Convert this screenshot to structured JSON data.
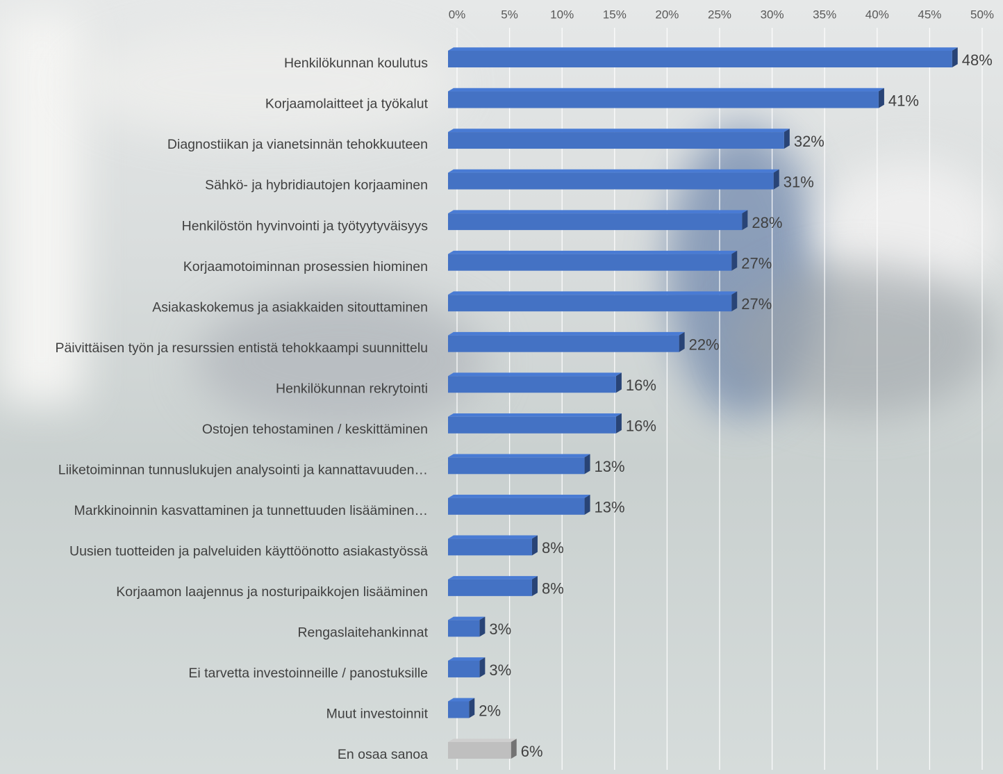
{
  "chart_data": {
    "type": "hbar",
    "categories": [
      "Henkilökunnan koulutus",
      "Korjaamolaitteet ja työkalut",
      "Diagnostiikan ja vianetsinnän tehokkuuteen",
      "Sähkö- ja hybridiautojen korjaaminen",
      "Henkilöstön hyvinvointi ja työtyytyväisyys",
      "Korjaamotoiminnan prosessien hiominen",
      "Asiakaskokemus ja asiakkaiden sitouttaminen",
      "Päivittäisen työn ja resurssien entistä tehokkaampi suunnittelu",
      "Henkilökunnan rekrytointi",
      "Ostojen tehostaminen / keskittäminen",
      "Liiketoiminnan tunnuslukujen analysointi ja kannattavuuden…",
      "Markkinoinnin kasvattaminen ja tunnettuuden lisääminen…",
      "Uusien tuotteiden ja palveluiden käyttöönotto asiakastyössä",
      "Korjaamon laajennus ja nosturipaikkojen lisääminen",
      "Rengaslaitehankinnat",
      "Ei tarvetta investoinneille / panostuksille",
      "Muut investoinnit",
      "En osaa sanoa"
    ],
    "values": [
      48,
      41,
      32,
      31,
      28,
      27,
      27,
      22,
      16,
      16,
      13,
      13,
      8,
      8,
      3,
      3,
      2,
      6
    ],
    "value_labels": [
      "48%",
      "41%",
      "32%",
      "31%",
      "28%",
      "27%",
      "27%",
      "22%",
      "16%",
      "16%",
      "13%",
      "13%",
      "8%",
      "8%",
      "3%",
      "3%",
      "2%",
      "6%"
    ],
    "colors": [
      "#4472c4",
      "#4472c4",
      "#4472c4",
      "#4472c4",
      "#4472c4",
      "#4472c4",
      "#4472c4",
      "#4472c4",
      "#4472c4",
      "#4472c4",
      "#4472c4",
      "#4472c4",
      "#4472c4",
      "#4472c4",
      "#4472c4",
      "#4472c4",
      "#4472c4",
      "#bfbfbf"
    ],
    "xlim": [
      0,
      50
    ],
    "xticks": [
      {
        "value": 0,
        "label": "0%"
      },
      {
        "value": 5,
        "label": "5%"
      },
      {
        "value": 10,
        "label": "10%"
      },
      {
        "value": 15,
        "label": "15%"
      },
      {
        "value": 20,
        "label": "20%"
      },
      {
        "value": 25,
        "label": "25%"
      },
      {
        "value": 30,
        "label": "30%"
      },
      {
        "value": 35,
        "label": "35%"
      },
      {
        "value": 40,
        "label": "40%"
      },
      {
        "value": 45,
        "label": "45%"
      },
      {
        "value": 50,
        "label": "50%"
      }
    ],
    "grid": true
  }
}
